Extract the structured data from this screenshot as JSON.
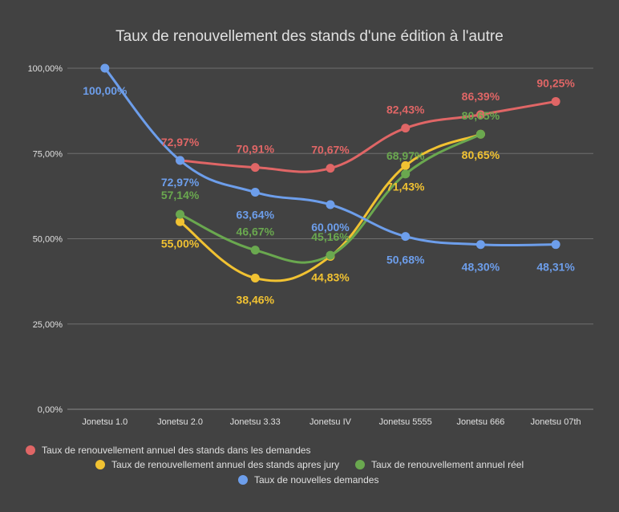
{
  "chart_data": {
    "type": "line",
    "title": "Taux de renouvellement des stands d'une édition à l'autre",
    "categories": [
      "Jonetsu 1.0",
      "Jonetsu 2.0",
      "Jonetsu 3.33",
      "Jonetsu IV",
      "Jonetsu 5555",
      "Jonetsu 666",
      "Jonetsu 07th"
    ],
    "ylim": [
      0,
      100
    ],
    "yticks": [
      "0,00%",
      "25,00%",
      "50,00%",
      "75,00%",
      "100,00%"
    ],
    "ytick_values": [
      0,
      25,
      50,
      75,
      100
    ],
    "grid": true,
    "legend_position": "bottom",
    "series": [
      {
        "name": "Taux de renouvellement annuel des stands dans les demandes",
        "color": "#e06666",
        "values": [
          null,
          72.97,
          70.91,
          70.67,
          82.43,
          86.39,
          90.25
        ],
        "labels": [
          null,
          "72,97%",
          "70,91%",
          "70,67%",
          "82,43%",
          "86,39%",
          "90,25%"
        ]
      },
      {
        "name": "Taux de renouvellement annuel des stands apres jury",
        "color": "#f1c232",
        "values": [
          null,
          55.0,
          38.46,
          44.83,
          71.43,
          80.65,
          null
        ],
        "labels": [
          null,
          "55,00%",
          "38,46%",
          "44,83%",
          "71,43%",
          "80,65%",
          null
        ]
      },
      {
        "name": "Taux de renouvellement annuel réel",
        "color": "#6aa84f",
        "values": [
          null,
          57.14,
          46.67,
          45.16,
          68.97,
          80.65,
          null
        ],
        "labels": [
          null,
          "57,14%",
          "46,67%",
          "45,16%",
          "68,97%",
          "80,65%",
          null
        ]
      },
      {
        "name": "Taux de nouvelles demandes",
        "color": "#6d9eeb",
        "values": [
          100.0,
          72.97,
          63.64,
          60.0,
          50.68,
          48.3,
          48.31
        ],
        "labels": [
          "100,00%",
          "72,97%",
          "63,64%",
          "60,00%",
          "50,68%",
          "48,30%",
          "48,31%"
        ]
      }
    ]
  }
}
